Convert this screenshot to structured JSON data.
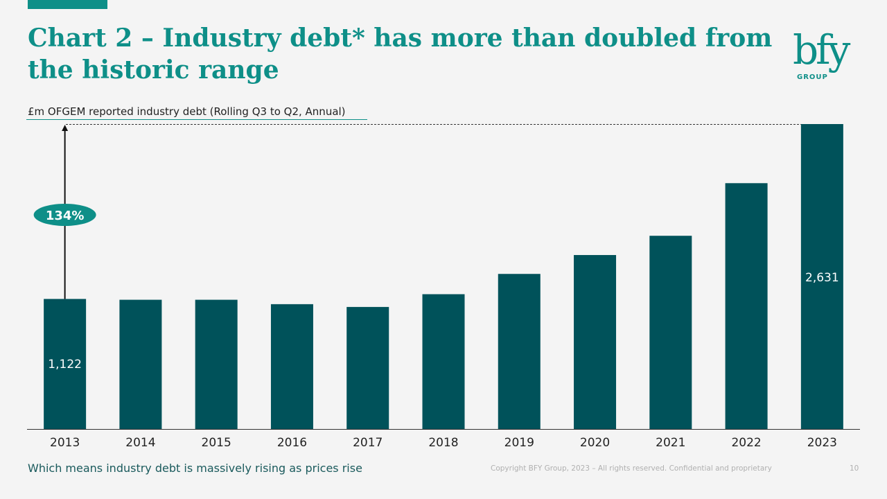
{
  "slide": {
    "title": "Chart 2 – Industry debt* has more than doubled from the historic range",
    "subtitle": "£m OFGEM reported industry debt (Rolling Q3 to Q2, Annual)",
    "footnote": "Which means industry debt is massively rising as prices rise",
    "copyright": "Copyright BFY Group, 2023 – All rights reserved. Confidential and proprietary",
    "page_number": "10",
    "logo_text": "bfy",
    "logo_subtext": "GROUP"
  },
  "colors": {
    "accent": "#0e8f88",
    "bar": "#00525a",
    "text": "#222222"
  },
  "chart_data": {
    "type": "bar",
    "title": "£m OFGEM reported industry debt (Rolling Q3 to Q2, Annual)",
    "categories": [
      "2013",
      "2014",
      "2015",
      "2016",
      "2017",
      "2018",
      "2019",
      "2020",
      "2021",
      "2022",
      "2023"
    ],
    "values": [
      1122,
      1115,
      1115,
      1077,
      1053,
      1163,
      1338,
      1501,
      1667,
      2121,
      2631
    ],
    "data_labels": {
      "2013": "1,122",
      "2023": "2,631"
    },
    "annotation": {
      "label": "134%",
      "from": "2013",
      "to": "2023"
    },
    "xlabel": "",
    "ylabel": "",
    "ylim": [
      0,
      2631
    ],
    "grid": false,
    "legend": false
  }
}
